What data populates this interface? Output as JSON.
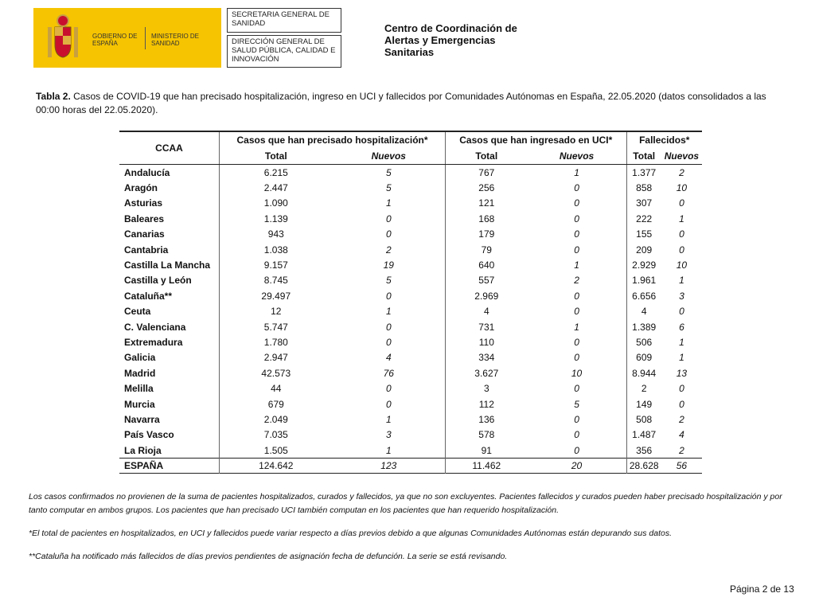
{
  "header": {
    "logo_left": "GOBIERNO DE ESPAÑA",
    "logo_right": "MINISTERIO DE SANIDAD",
    "box1": "SECRETARIA GENERAL DE SANIDAD",
    "box2": "DIRECCIÓN GENERAL DE SALUD PÚBLICA, CALIDAD E INNOVACIÓN",
    "center": [
      "Centro de Coordinación de",
      "Alertas y Emergencias",
      "Sanitarias"
    ]
  },
  "caption": {
    "label": "Tabla 2.",
    "text": "Casos de COVID-19 que han precisado hospitalización, ingreso en UCI y fallecidos por Comunidades Autónomas en España, 22.05.2020 (datos consolidados a las 00:00 horas del 22.05.2020)."
  },
  "table": {
    "first_header": "CCAA",
    "groups": [
      "Casos que han precisado hospitalización*",
      "Casos que han ingresado en UCI*",
      "Fallecidos*"
    ],
    "subheaders": [
      "Total",
      "Nuevos",
      "Total",
      "Nuevos",
      "Total",
      "Nuevos"
    ],
    "rows": [
      [
        "Andalucía",
        "6.215",
        "5",
        "767",
        "1",
        "1.377",
        "2"
      ],
      [
        "Aragón",
        "2.447",
        "5",
        "256",
        "0",
        "858",
        "10"
      ],
      [
        "Asturias",
        "1.090",
        "1",
        "121",
        "0",
        "307",
        "0"
      ],
      [
        "Baleares",
        "1.139",
        "0",
        "168",
        "0",
        "222",
        "1"
      ],
      [
        "Canarias",
        "943",
        "0",
        "179",
        "0",
        "155",
        "0"
      ],
      [
        "Cantabria",
        "1.038",
        "2",
        "79",
        "0",
        "209",
        "0"
      ],
      [
        "Castilla La Mancha",
        "9.157",
        "19",
        "640",
        "1",
        "2.929",
        "10"
      ],
      [
        "Castilla y León",
        "8.745",
        "5",
        "557",
        "2",
        "1.961",
        "1"
      ],
      [
        "Cataluña**",
        "29.497",
        "0",
        "2.969",
        "0",
        "6.656",
        "3"
      ],
      [
        "Ceuta",
        "12",
        "1",
        "4",
        "0",
        "4",
        "0"
      ],
      [
        "C. Valenciana",
        "5.747",
        "0",
        "731",
        "1",
        "1.389",
        "6"
      ],
      [
        "Extremadura",
        "1.780",
        "0",
        "110",
        "0",
        "506",
        "1"
      ],
      [
        "Galicia",
        "2.947",
        "4",
        "334",
        "0",
        "609",
        "1"
      ],
      [
        "Madrid",
        "42.573",
        "76",
        "3.627",
        "10",
        "8.944",
        "13"
      ],
      [
        "Melilla",
        "44",
        "0",
        "3",
        "0",
        "2",
        "0"
      ],
      [
        "Murcia",
        "679",
        "0",
        "112",
        "5",
        "149",
        "0"
      ],
      [
        "Navarra",
        "2.049",
        "1",
        "136",
        "0",
        "508",
        "2"
      ],
      [
        "País Vasco",
        "7.035",
        "3",
        "578",
        "0",
        "1.487",
        "4"
      ],
      [
        "La Rioja",
        "1.505",
        "1",
        "91",
        "0",
        "356",
        "2"
      ]
    ],
    "total": [
      "ESPAÑA",
      "124.642",
      "123",
      "11.462",
      "20",
      "28.628",
      "56"
    ]
  },
  "notes": [
    "Los casos confirmados no provienen de la suma de pacientes hospitalizados, curados y fallecidos, ya que no son excluyentes. Pacientes fallecidos y curados pueden haber precisado hospitalización y por tanto computar en ambos grupos. Los pacientes que han precisado UCI también computan en los pacientes que han requerido hospitalización.",
    "*El total de pacientes en hospitalizados, en UCI y fallecidos puede variar respecto a días previos debido a que algunas Comunidades Autónomas están depurando sus datos.",
    "**Cataluña ha notificado más fallecidos de días previos pendientes de asignación  fecha de defunción. La serie se está revisando."
  ],
  "footer": {
    "page": "Página 2 de 13"
  }
}
